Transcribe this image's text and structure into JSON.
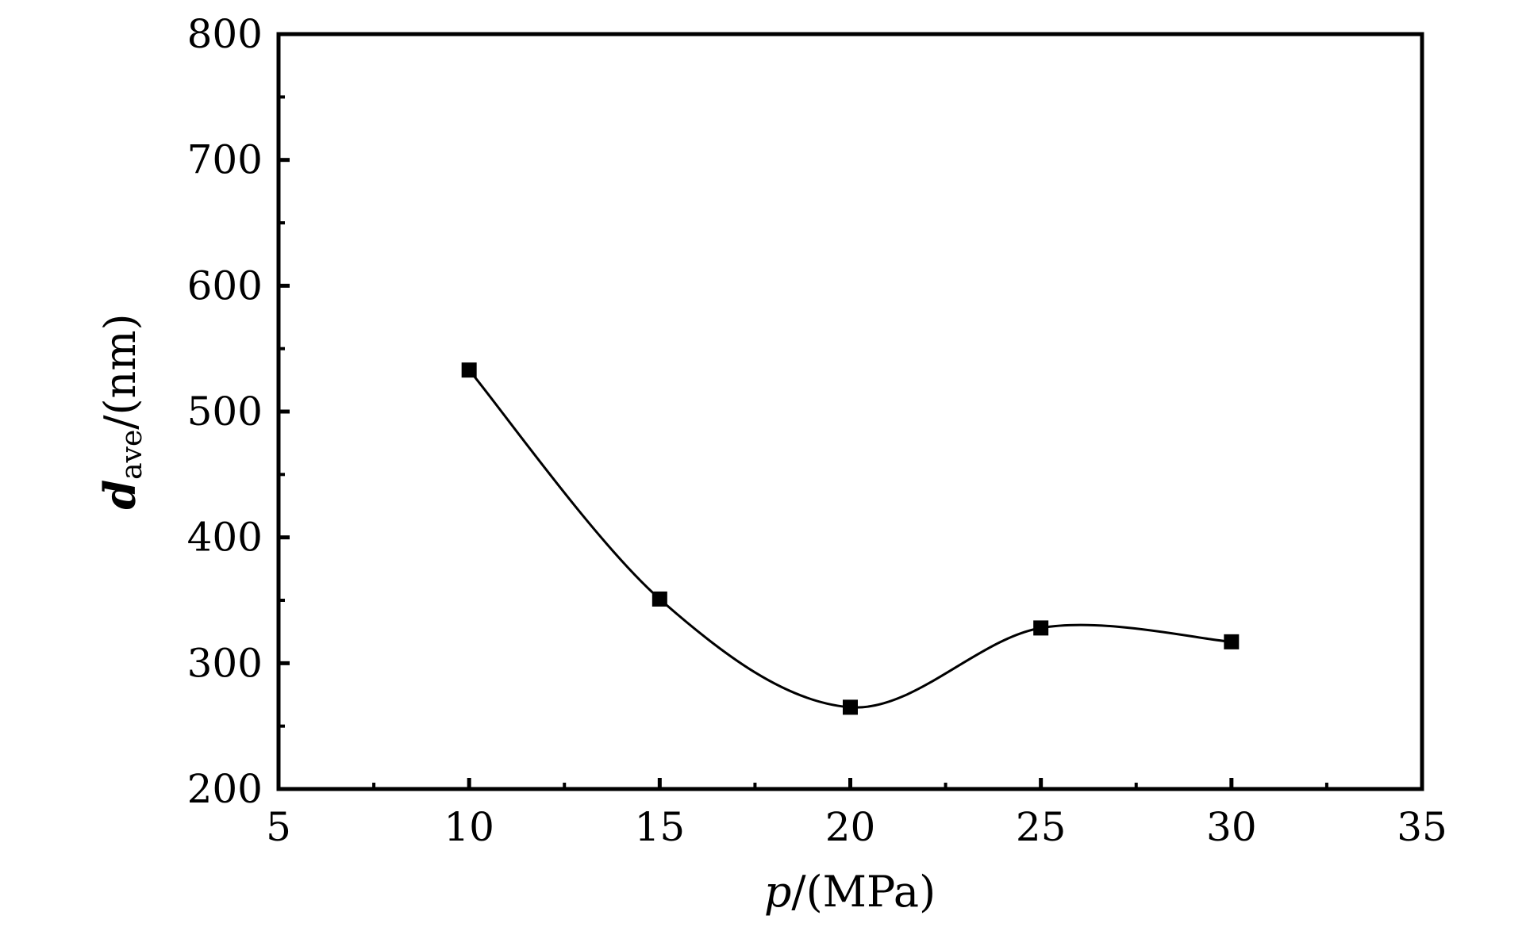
{
  "chart_data": {
    "type": "line",
    "x": [
      10,
      15,
      20,
      25,
      30
    ],
    "y": [
      533,
      351,
      265,
      328,
      317
    ],
    "xlim": [
      5,
      35
    ],
    "ylim": [
      200,
      800
    ],
    "xticks": [
      5,
      10,
      15,
      20,
      25,
      30,
      35
    ],
    "yticks": [
      200,
      300,
      400,
      500,
      600,
      700,
      800
    ],
    "xminor": [
      7.5,
      12.5,
      17.5,
      22.5,
      27.5,
      32.5
    ],
    "yminor": [
      250,
      350,
      450,
      550,
      650,
      750
    ],
    "xlabel": {
      "var": "p",
      "unit": "/(MPa)"
    },
    "ylabel": {
      "var": "d",
      "sub": "ave",
      "unit": "/(nm)"
    },
    "marker": "square",
    "smooth": true,
    "grid": false,
    "color": "#000000"
  }
}
